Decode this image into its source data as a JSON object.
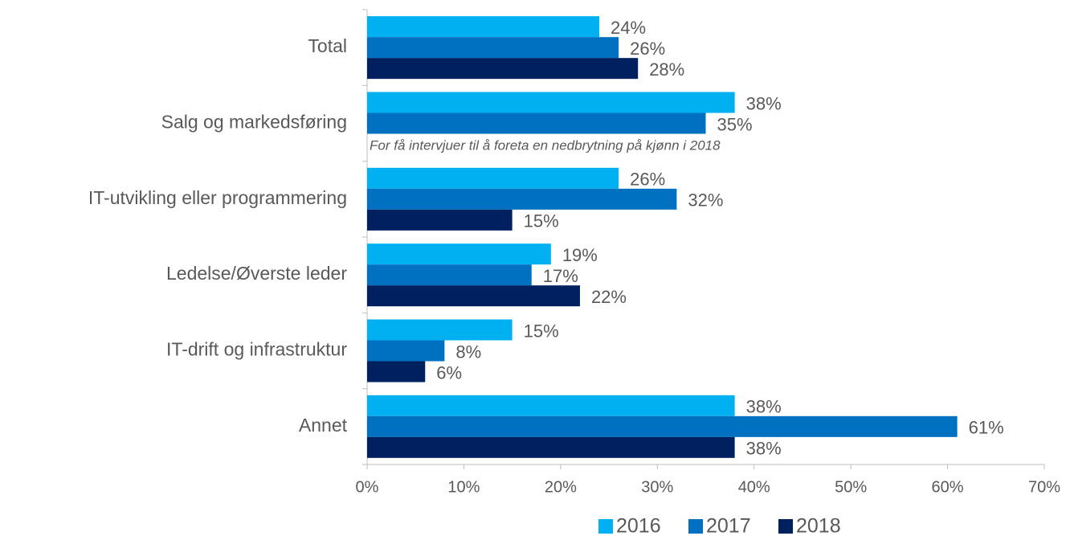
{
  "chart_data": {
    "type": "hbar",
    "categories": [
      "Total",
      "Salg og markedsføring",
      "IT-utvikling eller programmering",
      "Ledelse/Øverste leder",
      "IT-drift og infrastruktur",
      "Annet"
    ],
    "series": [
      {
        "name": "2016",
        "color": "#00b0f0",
        "values": [
          24,
          38,
          26,
          19,
          15,
          38
        ],
        "value_labels": [
          "24%",
          "38%",
          "26%",
          "19%",
          "15%",
          "38%"
        ]
      },
      {
        "name": "2017",
        "color": "#0070c0",
        "values": [
          26,
          35,
          32,
          17,
          8,
          61
        ],
        "value_labels": [
          "26%",
          "35%",
          "32%",
          "17%",
          "8%",
          "61%"
        ]
      },
      {
        "name": "2018",
        "color": "#002060",
        "values": [
          28,
          null,
          15,
          22,
          6,
          38
        ],
        "value_labels": [
          "28%",
          null,
          "15%",
          "22%",
          "6%",
          "38%"
        ]
      }
    ],
    "annotation": "For få intervjuer til å foreta en nedbrytning på kjønn i 2018",
    "xlim": [
      0,
      70
    ],
    "xticks": [
      {
        "value": 0,
        "label": "0%"
      },
      {
        "value": 10,
        "label": "10%"
      },
      {
        "value": 20,
        "label": "20%"
      },
      {
        "value": 30,
        "label": "30%"
      },
      {
        "value": 40,
        "label": "40%"
      },
      {
        "value": 50,
        "label": "50%"
      },
      {
        "value": 60,
        "label": "60%"
      },
      {
        "value": 70,
        "label": "70%"
      }
    ],
    "legend": "bottom"
  }
}
